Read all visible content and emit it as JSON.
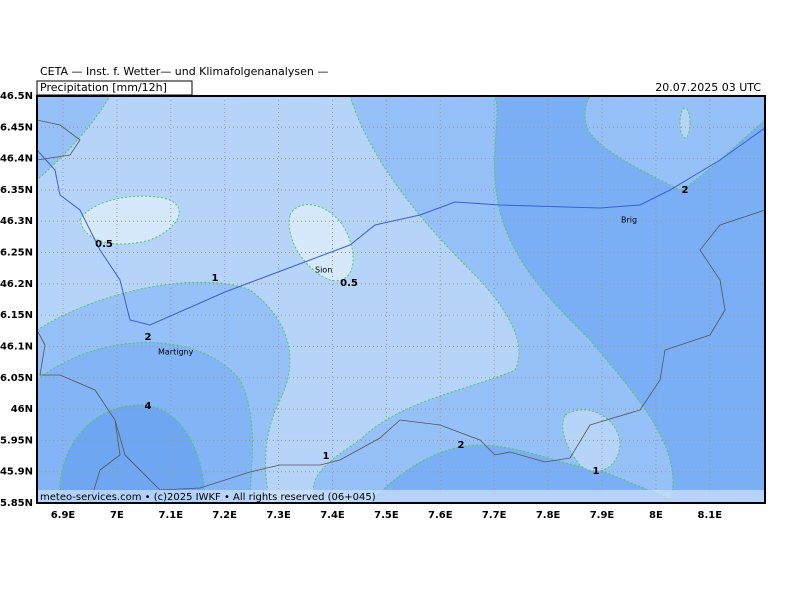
{
  "header": {
    "title": "CETA — Inst. f. Wetter— und Klimafolgenanalysen —",
    "product": "Precipitation [mm/12h]",
    "valid": "20.07.2025 03 UTC"
  },
  "map": {
    "lat_labels": [
      "46.5N",
      "46.45N",
      "46.4N",
      "46.35N",
      "46.3N",
      "46.25N",
      "46.2N",
      "46.15N",
      "46.1N",
      "46.05N",
      "46N",
      "5.95N",
      "45.9N",
      "5.85N"
    ],
    "lon_labels": [
      "6.9E",
      "7E",
      "7.1E",
      "7.2E",
      "7.3E",
      "7.4E",
      "7.5E",
      "7.6E",
      "7.7E",
      "7.8E",
      "7.9E",
      "8E",
      "8.1E"
    ],
    "places": [
      "Sion",
      "Martigny",
      "Brig"
    ],
    "contour_labels": [
      "0.5",
      "1",
      "2",
      "4",
      "0.5",
      "1",
      "2",
      "1",
      "2"
    ]
  },
  "footer": "meteo-services.com • (c)2025 IWKF • All rights reserved (06+045)"
}
